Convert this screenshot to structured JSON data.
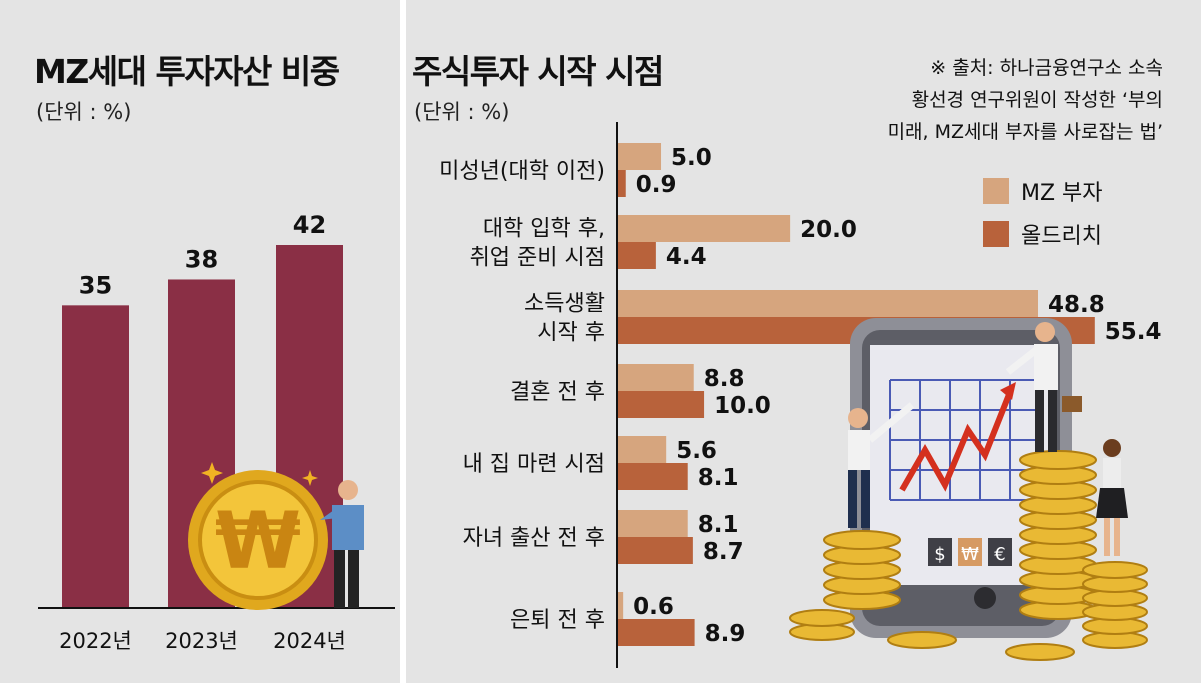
{
  "left": {
    "title": "MZ세대 투자자산 비중",
    "unit": "(단위 : %)"
  },
  "right": {
    "title": "주식투자 시작 시점",
    "unit": "(단위 : %)"
  },
  "source": {
    "line1": "※ 출처: 하나금융연구소 소속",
    "line2": "황선경 연구위원이 작성한 ‘부의",
    "line3": "미래, MZ세대 부자를 사로잡는 법’"
  },
  "legend": {
    "mz": "MZ 부자",
    "old": "올드리치"
  },
  "colors": {
    "background": "#e4e4e4",
    "left_bar": "#8a2f45",
    "mz": "#d6a57e",
    "old": "#b8623b",
    "axis": "#111111"
  },
  "chart_data": [
    {
      "type": "bar",
      "title": "MZ세대 투자자산 비중",
      "unit": "%",
      "categories": [
        "2022년",
        "2023년",
        "2024년"
      ],
      "values": [
        35,
        38,
        42
      ],
      "ylim": [
        0,
        50
      ],
      "grid": false
    },
    {
      "type": "bar",
      "orientation": "horizontal",
      "title": "주식투자 시작 시점",
      "unit": "%",
      "categories": [
        [
          "미성년(대학 이전)"
        ],
        [
          "대학 입학 후,",
          "취업 준비 시점"
        ],
        [
          "소득생활",
          "시작 후"
        ],
        [
          "결혼 전 후"
        ],
        [
          "내 집 마련 시점"
        ],
        [
          "자녀 출산 전 후"
        ],
        [
          "은퇴 전 후"
        ]
      ],
      "series": [
        {
          "name": "MZ 부자",
          "values": [
            5.0,
            20.0,
            48.8,
            8.8,
            5.6,
            8.1,
            0.6
          ],
          "labels": [
            "5.0",
            "20.0",
            "48.8",
            "8.8",
            "5.6",
            "8.1",
            "0.6"
          ]
        },
        {
          "name": "올드리치",
          "values": [
            0.9,
            4.4,
            55.4,
            10.0,
            8.1,
            8.7,
            8.9
          ],
          "labels": [
            "0.9",
            "4.4",
            "55.4",
            "10.0",
            "8.1",
            "8.7",
            "8.9"
          ]
        }
      ],
      "legend": "top-right",
      "grid": false
    }
  ]
}
